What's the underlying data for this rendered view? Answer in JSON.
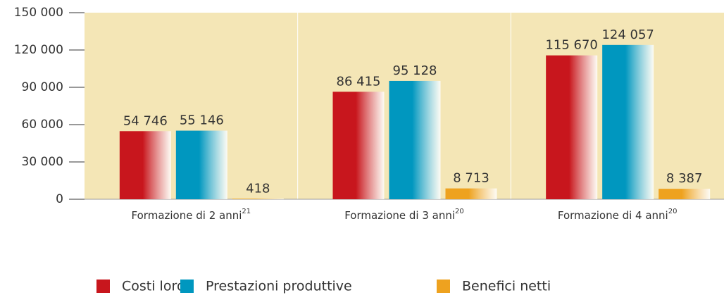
{
  "chart_data": {
    "type": "bar",
    "categories": [
      "Formazione di 2 anni",
      "Formazione di 3 anni",
      "Formazione di 4 anni"
    ],
    "category_notes": [
      "21",
      "20",
      "20"
    ],
    "series": [
      {
        "name": "Costi lordi",
        "color": "#c8161d",
        "values": [
          54746,
          86415,
          115670
        ],
        "value_labels": [
          "54 746",
          "86 415",
          "115 670"
        ]
      },
      {
        "name": "Prestazioni produttive",
        "color": "#0097bf",
        "values": [
          55146,
          95128,
          124057
        ],
        "value_labels": [
          "55 146",
          "95 128",
          "124 057"
        ]
      },
      {
        "name": "Benefici netti",
        "color": "#eea21f",
        "values": [
          418,
          8713,
          8387
        ],
        "value_labels": [
          "418",
          "8 713",
          "8 387"
        ]
      }
    ],
    "ylim": [
      0,
      150000
    ],
    "yticks": [
      0,
      {
        "value": 30000,
        "label": "30 000"
      },
      {
        "value": 60000,
        "label": "60 000"
      },
      {
        "value": 90000,
        "label": "90 000"
      },
      {
        "value": 120000,
        "label": "120 000"
      },
      {
        "value": 150000,
        "label": "150 000"
      }
    ]
  }
}
